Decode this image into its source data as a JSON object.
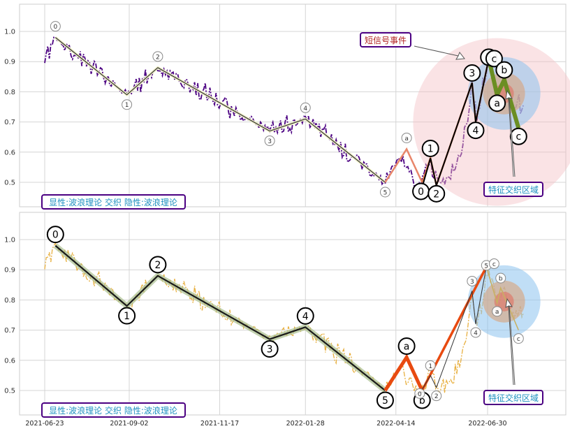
{
  "chart_data": [
    {
      "type": "line",
      "panel": "top",
      "ylim": [
        0.42,
        1.09
      ],
      "yticks": [
        0.5,
        0.6,
        0.7,
        0.8,
        0.9,
        1.0
      ],
      "grid": true,
      "series_style": {
        "color": "#4b0082",
        "dash": "dash-dot"
      },
      "wave_points": [
        {
          "label": "0",
          "date": "2021-07-02",
          "value": 0.98
        },
        {
          "label": "1",
          "date": "2021-08-31",
          "value": 0.79
        },
        {
          "label": "2",
          "date": "2021-09-26",
          "value": 0.88
        },
        {
          "label": "3",
          "date": "2021-12-29",
          "value": 0.67
        },
        {
          "label": "4",
          "date": "2022-01-28",
          "value": 0.71
        },
        {
          "label": "5",
          "date": "2022-04-05",
          "value": 0.5
        },
        {
          "label": "a",
          "date": "2022-04-23",
          "value": 0.61
        },
        {
          "label": "b",
          "date": "2022-05-06",
          "value": 0.5
        },
        {
          "label": "0",
          "date": "2022-05-05",
          "value": 0.47
        },
        {
          "label": "1",
          "date": "2022-05-13",
          "value": 0.58
        },
        {
          "label": "2",
          "date": "2022-05-18",
          "value": 0.49
        },
        {
          "label": "3",
          "date": "2022-06-17",
          "value": 0.83
        },
        {
          "label": "4",
          "date": "2022-06-20",
          "value": 0.7
        },
        {
          "label": "5",
          "date": "2022-07-01",
          "value": 0.91
        },
        {
          "label": "c",
          "date": "2022-07-02",
          "value": 0.91
        },
        {
          "label": "a",
          "date": "2022-07-08",
          "value": 0.79
        },
        {
          "label": "b",
          "date": "2022-07-14",
          "value": 0.84
        },
        {
          "label": "c",
          "date": "2022-07-26",
          "value": 0.68
        }
      ],
      "annotations": [
        {
          "text": "短信号事件",
          "color": "#b22222"
        },
        {
          "text": "特征交织区域",
          "color": "#1e90c0"
        }
      ],
      "caption": "显性:波浪理论 交织 隐性:波浪理论"
    },
    {
      "type": "line",
      "panel": "bottom",
      "ylim": [
        0.42,
        1.09
      ],
      "yticks": [
        0.5,
        0.6,
        0.7,
        0.8,
        0.9,
        1.0
      ],
      "xticks": [
        "2021-06-23",
        "2021-09-02",
        "2021-11-17",
        "2022-01-28",
        "2022-04-14",
        "2022-06-30"
      ],
      "grid": true,
      "series_style": {
        "color": "#e8b040",
        "dash": "dash-dot"
      },
      "wave_points": [
        {
          "label": "0",
          "date": "2021-07-02",
          "value": 0.98
        },
        {
          "label": "1",
          "date": "2021-08-31",
          "value": 0.78
        },
        {
          "label": "2",
          "date": "2021-09-26",
          "value": 0.88
        },
        {
          "label": "3",
          "date": "2021-12-29",
          "value": 0.67
        },
        {
          "label": "4",
          "date": "2022-01-28",
          "value": 0.71
        },
        {
          "label": "5",
          "date": "2022-04-05",
          "value": 0.5
        },
        {
          "label": "a",
          "date": "2022-04-23",
          "value": 0.61
        },
        {
          "label": "b",
          "date": "2022-05-06",
          "value": 0.5
        },
        {
          "label": "0",
          "date": "2022-05-04",
          "value": 0.49
        },
        {
          "label": "1",
          "date": "2022-05-13",
          "value": 0.55
        },
        {
          "label": "2",
          "date": "2022-05-18",
          "value": 0.51
        },
        {
          "label": "3",
          "date": "2022-06-17",
          "value": 0.83
        },
        {
          "label": "4",
          "date": "2022-06-20",
          "value": 0.72
        },
        {
          "label": "5",
          "date": "2022-06-29",
          "value": 0.91
        },
        {
          "label": "c",
          "date": "2022-07-02",
          "value": 0.92
        },
        {
          "label": "a",
          "date": "2022-07-08",
          "value": 0.79
        },
        {
          "label": "b",
          "date": "2022-07-11",
          "value": 0.84
        },
        {
          "label": "c",
          "date": "2022-07-26",
          "value": 0.7
        }
      ],
      "annotations": [
        {
          "text": "特征交织区域",
          "color": "#1e90c0"
        }
      ],
      "caption": "显性:波浪理论 交织 隐性:波浪理论"
    }
  ]
}
